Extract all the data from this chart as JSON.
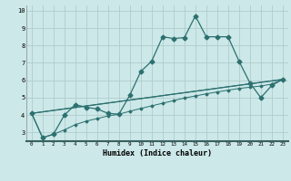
{
  "xlabel": "Humidex (Indice chaleur)",
  "bg_color": "#cce8e8",
  "grid_color": "#b0cccc",
  "line_color": "#2d7070",
  "xlim": [
    -0.5,
    23.5
  ],
  "ylim": [
    2.5,
    10.3
  ],
  "xticks": [
    0,
    1,
    2,
    3,
    4,
    5,
    6,
    7,
    8,
    9,
    10,
    11,
    12,
    13,
    14,
    15,
    16,
    17,
    18,
    19,
    20,
    21,
    22,
    23
  ],
  "yticks": [
    3,
    4,
    5,
    6,
    7,
    8,
    9,
    10
  ],
  "curve_main_x": [
    0,
    1,
    2,
    3,
    4,
    5,
    6,
    7,
    8,
    9,
    10,
    11,
    12,
    13,
    14,
    15,
    16,
    17,
    18,
    19,
    20,
    21,
    22,
    23
  ],
  "curve_main_y": [
    4.1,
    2.7,
    2.9,
    4.0,
    4.6,
    4.45,
    4.35,
    4.1,
    4.05,
    5.15,
    6.5,
    7.1,
    8.5,
    8.4,
    8.45,
    9.7,
    8.5,
    8.5,
    8.5,
    7.1,
    5.85,
    5.0,
    5.7,
    6.05
  ],
  "curve_line1_x": [
    0,
    23
  ],
  "curve_line1_y": [
    4.1,
    6.05
  ],
  "curve_line2_x": [
    0,
    23
  ],
  "curve_line2_y": [
    4.1,
    6.05
  ],
  "curve_line3_x": [
    0,
    1,
    2,
    3,
    4,
    5,
    6,
    7,
    8,
    9,
    10,
    11,
    12,
    13,
    14,
    15,
    16,
    17,
    18,
    19,
    20,
    21,
    22,
    23
  ],
  "curve_line3_y": [
    4.1,
    2.7,
    2.9,
    3.15,
    3.45,
    3.65,
    3.8,
    3.95,
    4.05,
    4.22,
    4.38,
    4.53,
    4.68,
    4.83,
    4.98,
    5.1,
    5.22,
    5.33,
    5.43,
    5.53,
    5.6,
    5.67,
    5.78,
    6.05
  ],
  "marker_size": 2.5,
  "line_width": 0.9
}
